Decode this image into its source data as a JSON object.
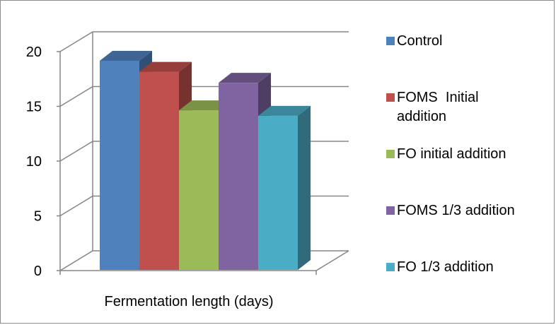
{
  "chart_data": {
    "type": "bar",
    "categories": [
      "Fermentation length (days)"
    ],
    "xlabel": "Fermentation length (days)",
    "ylim": [
      0,
      20
    ],
    "yticks": [
      0,
      5,
      10,
      15,
      20
    ],
    "grid": true,
    "legend_position": "right",
    "series": [
      {
        "name": "Control",
        "values": [
          19
        ],
        "color": "#4f81bd"
      },
      {
        "name": "FOMS  Initial addition",
        "values": [
          18
        ],
        "color": "#c0504d"
      },
      {
        "name": "FO initial addition",
        "values": [
          14.5
        ],
        "color": "#9bbb59"
      },
      {
        "name": "FOMS 1/3 addition",
        "values": [
          17
        ],
        "color": "#8064a2"
      },
      {
        "name": "FO 1/3 addition",
        "values": [
          14
        ],
        "color": "#4bacc6"
      }
    ]
  }
}
